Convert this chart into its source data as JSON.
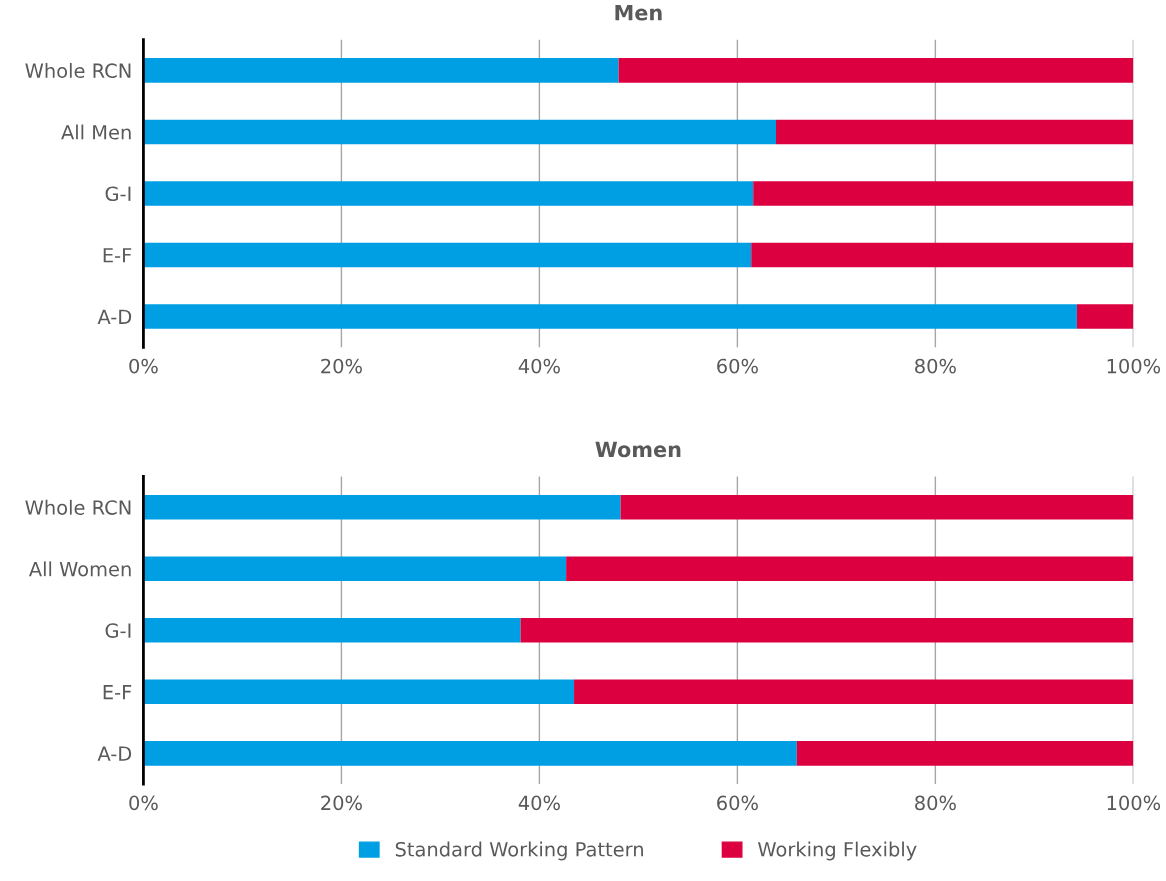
{
  "chart_data": [
    {
      "type": "bar",
      "title": "Men",
      "orientation": "horizontal",
      "stacked": true,
      "categories": [
        "Whole RCN",
        "All Men",
        "G-I",
        "E-F",
        "A-D"
      ],
      "series": [
        {
          "color": "#009fe3",
          "values": [
            48.0,
            63.9,
            61.6,
            61.4,
            94.3
          ]
        },
        {
          "color": "#dc0041",
          "values": [
            52.0,
            36.1,
            38.4,
            38.6,
            5.7
          ]
        }
      ],
      "xlim": [
        0,
        100
      ],
      "xticks": [
        {
          "value": 0,
          "label": "0%"
        },
        {
          "value": 20,
          "label": "20%"
        },
        {
          "value": 40,
          "label": "40%"
        },
        {
          "value": 60,
          "label": "60%"
        },
        {
          "value": 80,
          "label": "80%"
        },
        {
          "value": 100,
          "label": "100%"
        }
      ],
      "grid": "x"
    },
    {
      "type": "bar",
      "title": "Women",
      "orientation": "horizontal",
      "stacked": true,
      "categories": [
        "Whole RCN",
        "All Women",
        "G-I",
        "E-F",
        "A-D"
      ],
      "series": [
        {
          "name": "Standard Working Pattern",
          "color": "#009fe3",
          "values": [
            48.2,
            42.7,
            38.1,
            43.5,
            66.0
          ]
        },
        {
          "name": "Working Flexibly",
          "color": "#dc0041",
          "values": [
            51.8,
            57.3,
            61.9,
            56.5,
            34.0
          ]
        }
      ],
      "xlim": [
        0,
        100
      ],
      "xticks": [
        {
          "value": 0,
          "label": "0%"
        },
        {
          "value": 20,
          "label": "20%"
        },
        {
          "value": 40,
          "label": "40%"
        },
        {
          "value": 60,
          "label": "60%"
        },
        {
          "value": 80,
          "label": "80%"
        },
        {
          "value": 100,
          "label": "100%"
        }
      ],
      "grid": "x",
      "legend": "bottom"
    }
  ]
}
